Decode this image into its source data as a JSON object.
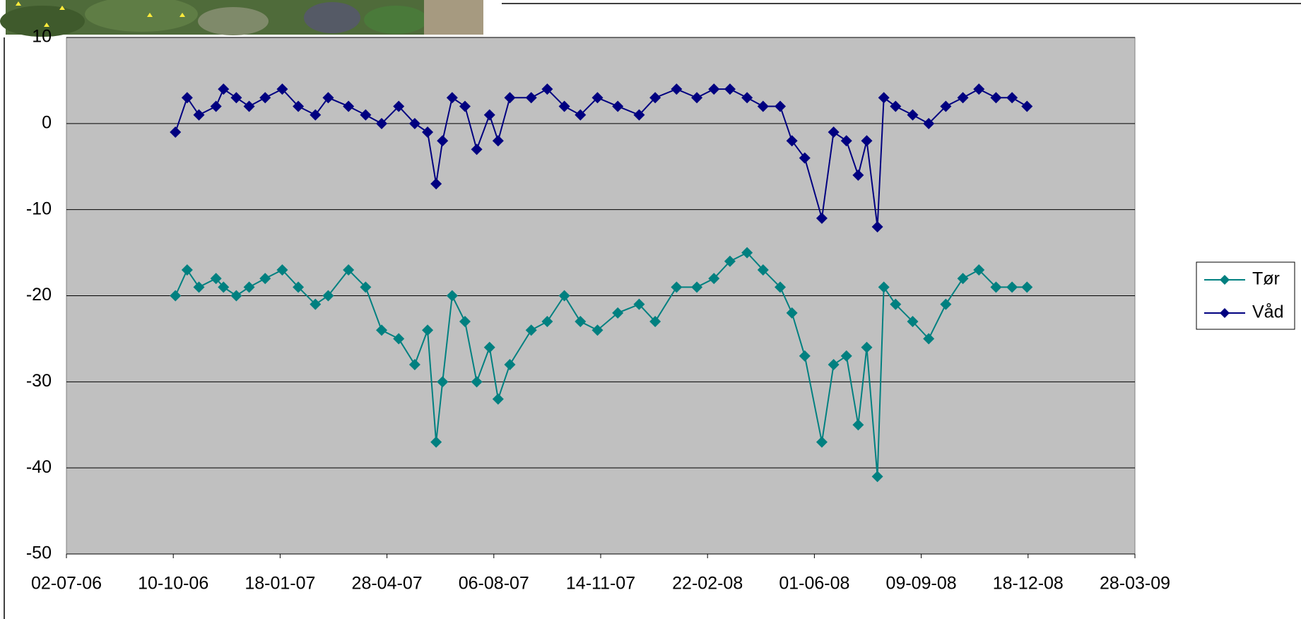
{
  "chart_data": {
    "type": "line",
    "x": [
      "2006-10-12",
      "2006-10-23",
      "2006-11-03",
      "2006-11-19",
      "2006-11-26",
      "2006-12-08",
      "2006-12-20",
      "2007-01-04",
      "2007-01-20",
      "2007-02-04",
      "2007-02-20",
      "2007-03-04",
      "2007-03-23",
      "2007-04-08",
      "2007-04-23",
      "2007-05-09",
      "2007-05-24",
      "2007-06-05",
      "2007-06-13",
      "2007-06-19",
      "2007-06-28",
      "2007-07-10",
      "2007-07-21",
      "2007-08-02",
      "2007-08-10",
      "2007-08-21",
      "2007-09-10",
      "2007-09-25",
      "2007-10-11",
      "2007-10-26",
      "2007-11-11",
      "2007-11-30",
      "2007-12-20",
      "2008-01-04",
      "2008-01-24",
      "2008-02-12",
      "2008-02-28",
      "2008-03-14",
      "2008-03-30",
      "2008-04-14",
      "2008-04-30",
      "2008-05-11",
      "2008-05-23",
      "2008-06-08",
      "2008-06-19",
      "2008-07-01",
      "2008-07-12",
      "2008-07-20",
      "2008-07-30",
      "2008-08-05",
      "2008-08-16",
      "2008-09-01",
      "2008-09-16",
      "2008-10-02",
      "2008-10-18",
      "2008-11-02",
      "2008-11-18",
      "2008-12-03",
      "2008-12-17"
    ],
    "series": [
      {
        "name": "Tør",
        "color": "#008080",
        "values": [
          -20,
          -17,
          -19,
          -18,
          -19,
          -20,
          -19,
          -18,
          -17,
          -19,
          -21,
          -20,
          -17,
          -19,
          -24,
          -25,
          -28,
          -24,
          -37,
          -30,
          -20,
          -23,
          -30,
          -26,
          -32,
          -28,
          -24,
          -23,
          -20,
          -23,
          -24,
          -22,
          -21,
          -23,
          -19,
          -19,
          -18,
          -16,
          -15,
          -17,
          -19,
          -22,
          -27,
          -37,
          -28,
          -27,
          -35,
          -26,
          -41,
          -19,
          -21,
          -23,
          -25,
          -21,
          -18,
          -17,
          -19,
          -19,
          -19
        ]
      },
      {
        "name": "Våd",
        "color": "#000080",
        "values": [
          -1,
          3,
          1,
          2,
          4,
          3,
          2,
          3,
          4,
          2,
          1,
          3,
          2,
          1,
          0,
          2,
          0,
          -1,
          -7,
          -2,
          3,
          2,
          -3,
          1,
          -2,
          3,
          3,
          4,
          2,
          1,
          3,
          2,
          1,
          3,
          4,
          3,
          4,
          4,
          3,
          2,
          2,
          -2,
          -4,
          -11,
          -1,
          -2,
          -6,
          -2,
          -12,
          3,
          2,
          1,
          0,
          2,
          3,
          4,
          3,
          3,
          2
        ]
      }
    ],
    "xlim": [
      "2006-07-02",
      "2009-03-28"
    ],
    "xticks": [
      {
        "value": "2006-07-02",
        "label": "02-07-06"
      },
      {
        "value": "2006-10-10",
        "label": "10-10-06"
      },
      {
        "value": "2007-01-18",
        "label": "18-01-07"
      },
      {
        "value": "2007-04-28",
        "label": "28-04-07"
      },
      {
        "value": "2007-08-06",
        "label": "06-08-07"
      },
      {
        "value": "2007-11-14",
        "label": "14-11-07"
      },
      {
        "value": "2008-02-22",
        "label": "22-02-08"
      },
      {
        "value": "2008-06-01",
        "label": "01-06-08"
      },
      {
        "value": "2008-09-09",
        "label": "09-09-08"
      },
      {
        "value": "2008-12-18",
        "label": "18-12-08"
      },
      {
        "value": "2009-03-28",
        "label": "28-03-09"
      }
    ],
    "ylim": [
      -50,
      10
    ],
    "yticks": [
      -50,
      -40,
      -30,
      -20,
      -10,
      0,
      10
    ],
    "grid": true,
    "legend": "right"
  }
}
